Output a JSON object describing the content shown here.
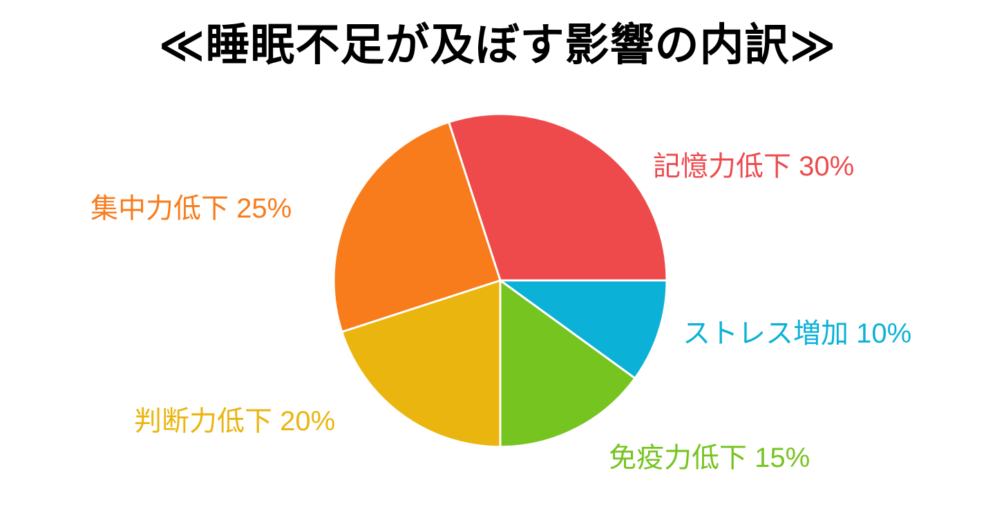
{
  "title": "≪睡眠不足が及ぼす影響の内訳≫",
  "chart_data": {
    "type": "pie",
    "title": "睡眠不足が及ぼす影響の内訳",
    "rotation": "clockwise",
    "start_angle_deg": -18,
    "legend_position": "labels-around-pie",
    "background": "#ffffff",
    "stroke_color": "#ffffff",
    "stroke_width": 3,
    "slices": [
      {
        "name": "記憶力低下",
        "value": 30,
        "unit": "%",
        "label": "記憶力低下 30%",
        "color": "#EE4A4C"
      },
      {
        "name": "ストレス増加",
        "value": 10,
        "unit": "%",
        "label": "ストレス増加 10%",
        "color": "#0CB1D8"
      },
      {
        "name": "免疫力低下",
        "value": 15,
        "unit": "%",
        "label": "免疫力低下 15%",
        "color": "#76C420"
      },
      {
        "name": "判断力低下",
        "value": 20,
        "unit": "%",
        "label": "判断力低下 20%",
        "color": "#EBB50F"
      },
      {
        "name": "集中力低下",
        "value": 25,
        "unit": "%",
        "label": "集中力低下 25%",
        "color": "#F87C1C"
      }
    ]
  }
}
